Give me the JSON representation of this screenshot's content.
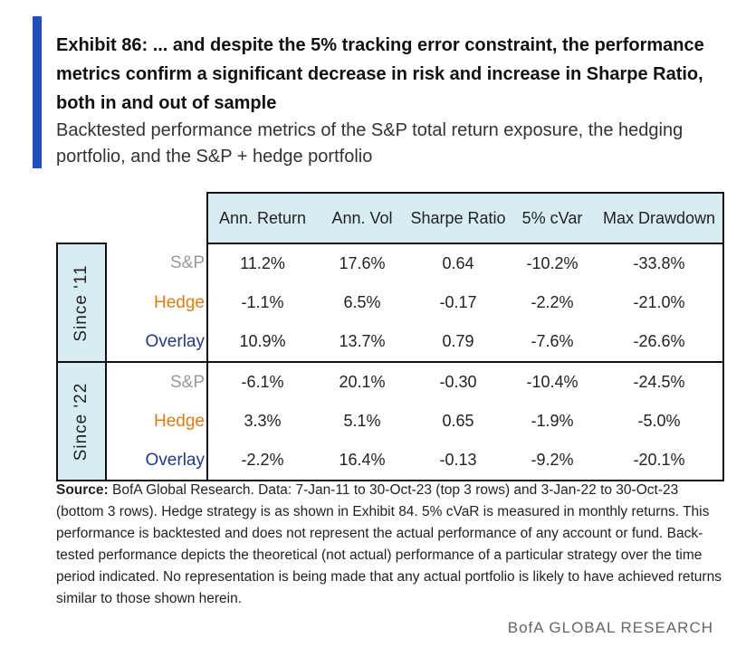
{
  "exhibit": {
    "title": "Exhibit 86: ... and despite the 5% tracking error constraint, the performance metrics confirm a significant decrease in risk and increase in Sharpe Ratio, both in and out of sample",
    "subtitle": "Backtested performance metrics of the S&P total return exposure, the hedging portfolio, and the S&P + hedge portfolio"
  },
  "colors": {
    "accent": "#1f4fbf",
    "header_bg": "#d8edf2",
    "sp": "#9a9a9a",
    "hedge": "#e07b12",
    "overlay": "#1f3a8a"
  },
  "table": {
    "columns": [
      "Ann. Return",
      "Ann. Vol",
      "Sharpe Ratio",
      "5% cVar",
      "Max Drawdown"
    ],
    "groups": [
      {
        "period": "Since '11",
        "rows": [
          {
            "label": "S&P",
            "values": [
              "11.2%",
              "17.6%",
              "0.64",
              "-10.2%",
              "-33.8%"
            ]
          },
          {
            "label": "Hedge",
            "values": [
              "-1.1%",
              "6.5%",
              "-0.17",
              "-2.2%",
              "-21.0%"
            ]
          },
          {
            "label": "Overlay",
            "values": [
              "10.9%",
              "13.7%",
              "0.79",
              "-7.6%",
              "-26.6%"
            ]
          }
        ]
      },
      {
        "period": "Since '22",
        "rows": [
          {
            "label": "S&P",
            "values": [
              "-6.1%",
              "20.1%",
              "-0.30",
              "-10.4%",
              "-24.5%"
            ]
          },
          {
            "label": "Hedge",
            "values": [
              "3.3%",
              "5.1%",
              "0.65",
              "-1.9%",
              "-5.0%"
            ]
          },
          {
            "label": "Overlay",
            "values": [
              "-2.2%",
              "16.4%",
              "-0.13",
              "-9.2%",
              "-20.1%"
            ]
          }
        ]
      }
    ]
  },
  "source": {
    "label": "Source:",
    "text": " BofA Global Research. Data: 7-Jan-11 to 30-Oct-23 (top 3 rows) and 3-Jan-22 to 30-Oct-23 (bottom 3 rows). Hedge strategy is as shown in Exhibit 84. 5% cVaR is measured in monthly returns. This performance is backtested and does not represent the actual performance of any account or fund. Back-tested performance depicts the theoretical (not actual) performance of a particular strategy over the time period indicated. No representation is being made that any actual portfolio is likely to have achieved returns similar to those shown herein."
  },
  "footer": "BofA GLOBAL RESEARCH"
}
